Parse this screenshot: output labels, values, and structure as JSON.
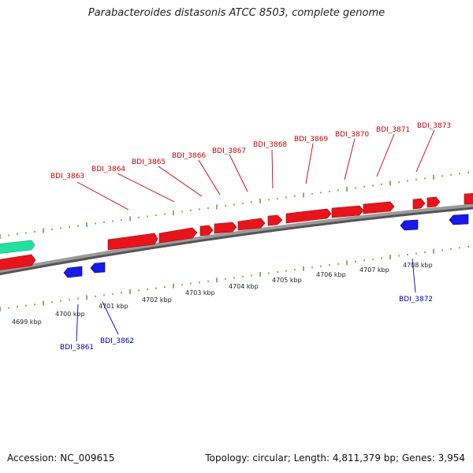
{
  "title": "Parabacteroides distasonis ATCC 8503, complete genome",
  "footer": {
    "accession": "Accession: NC_009615",
    "summary": "Topology: circular; Length: 4,811,379 bp; Genes: 3,954"
  },
  "colors": {
    "forward_gene": "#e8141b",
    "reverse_gene": "#1a1ae6",
    "rna_gene": "#22e0a0",
    "tick": "#2c7d1a",
    "backbone": "#888888",
    "forward_label": "#cc0000",
    "reverse_label": "#0000bb"
  },
  "scale_labels": [
    "4699 kbp",
    "4700 kbp",
    "4701 kbp",
    "4702 kbp",
    "4703 kbp",
    "4704 kbp",
    "4705 kbp",
    "4706 kbp",
    "4707 kbp",
    "4708 kbp"
  ],
  "forward_gene_labels": [
    "BDI_3863",
    "BDI_3864",
    "BDI_3865",
    "BDI_3866",
    "BDI_3867",
    "BDI_3868",
    "BDI_3869",
    "BDI_3870",
    "BDI_3871",
    "BDI_3873"
  ],
  "reverse_gene_labels": [
    "BDI_3861",
    "BDI_3862",
    "BDI_3872"
  ]
}
